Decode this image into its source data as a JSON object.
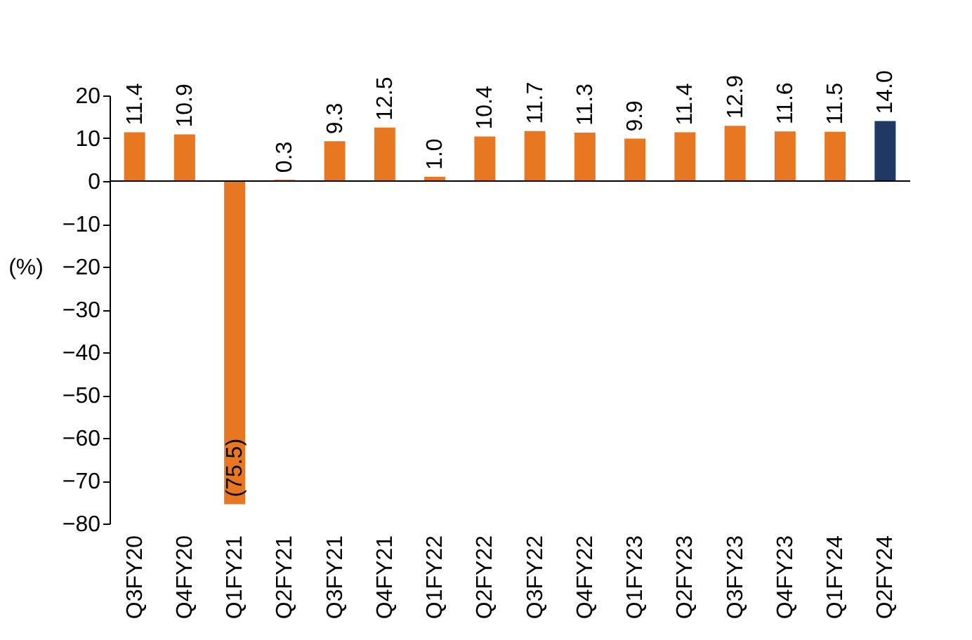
{
  "chart_data": {
    "type": "bar",
    "ylabel": "(%)",
    "categories": [
      "Q3FY20",
      "Q4FY20",
      "Q1FY21",
      "Q2FY21",
      "Q3FY21",
      "Q4FY21",
      "Q1FY22",
      "Q2FY22",
      "Q3FY22",
      "Q4FY22",
      "Q1FY23",
      "Q2FY23",
      "Q3FY23",
      "Q4FY23",
      "Q1FY24",
      "Q2FY24"
    ],
    "values": [
      11.4,
      10.9,
      -75.5,
      0.3,
      9.3,
      12.5,
      1.0,
      10.4,
      11.7,
      11.3,
      9.9,
      11.4,
      12.9,
      11.6,
      11.5,
      14.0
    ],
    "colors": [
      "#e87722",
      "#e87722",
      "#e87722",
      "#e87722",
      "#e87722",
      "#e87722",
      "#e87722",
      "#e87722",
      "#e87722",
      "#e87722",
      "#e87722",
      "#e87722",
      "#e87722",
      "#e87722",
      "#e87722",
      "#1f3864"
    ],
    "value_labels": [
      "11.4",
      "10.9",
      "(75.5)",
      "0.3",
      "9.3",
      "12.5",
      "1.0",
      "10.4",
      "11.7",
      "11.3",
      "9.9",
      "11.4",
      "12.9",
      "11.6",
      "11.5",
      "14.0"
    ],
    "ylim": [
      -80,
      20
    ],
    "yticks": [
      -80,
      -70,
      -60,
      -50,
      -40,
      -30,
      -20,
      -10,
      0,
      10,
      20
    ],
    "ref_lines": [
      {
        "axis": "y",
        "value": 0
      }
    ],
    "grid": false
  }
}
